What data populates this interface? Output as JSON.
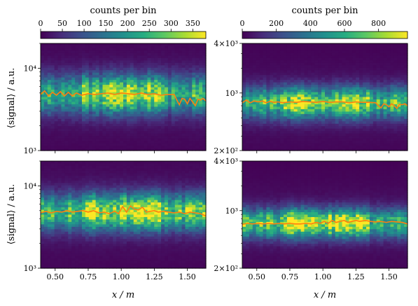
{
  "figure": {
    "colorbar_label": "counts per bin",
    "xlabel": "x / m",
    "ylabel": "⟨signal⟩ / a.u."
  },
  "colorbars": [
    {
      "label": "counts per bin",
      "range": [
        0,
        380
      ],
      "ticks": [
        "0",
        "50",
        "100",
        "150",
        "200",
        "250",
        "300",
        "350"
      ],
      "tick_values": [
        0,
        50,
        100,
        150,
        200,
        250,
        300,
        350
      ],
      "colormap": "viridis"
    },
    {
      "label": "counts per bin",
      "range": [
        0,
        970
      ],
      "ticks": [
        "0",
        "200",
        "400",
        "600",
        "800"
      ],
      "tick_values": [
        0,
        200,
        400,
        600,
        800
      ],
      "colormap": "viridis"
    }
  ],
  "chart_data": [
    {
      "type": "heatmap",
      "panel": "top-left",
      "xlabel": "",
      "ylabel": "⟨signal⟩ / a.u.",
      "xlim": [
        0.39,
        1.64
      ],
      "ylim": [
        1000,
        20000
      ],
      "yscale": "log",
      "xticks": [
        0.5,
        0.75,
        1.0,
        1.25,
        1.5
      ],
      "xtick_labels": [
        "",
        "",
        "",
        "",
        ""
      ],
      "yticks": [
        1000,
        10000
      ],
      "ytick_labels": [
        "10³",
        "10⁴"
      ],
      "colorbar": 0,
      "grid": false,
      "mean_line": {
        "color": "#ff7f0e",
        "x": [
          0.39,
          0.42,
          0.45,
          0.48,
          0.51,
          0.54,
          0.57,
          0.6,
          0.63,
          0.66,
          0.7,
          0.75,
          0.8,
          0.85,
          0.9,
          0.95,
          1.0,
          1.05,
          1.1,
          1.15,
          1.2,
          1.25,
          1.3,
          1.35,
          1.4,
          1.42,
          1.44,
          1.46,
          1.48,
          1.5,
          1.52,
          1.54,
          1.56,
          1.58,
          1.6,
          1.62,
          1.64
        ],
        "y": [
          4800,
          5300,
          4600,
          5100,
          4700,
          5200,
          4600,
          5100,
          4600,
          5000,
          4700,
          4900,
          4800,
          4900,
          5000,
          4800,
          5000,
          4900,
          4800,
          5000,
          4800,
          4900,
          4700,
          4800,
          4800,
          4100,
          3600,
          4300,
          4200,
          3700,
          4300,
          3900,
          3500,
          4200,
          4100,
          4300,
          4000
        ]
      },
      "density": {
        "center": 4800,
        "spread": 0.16,
        "peak": 260,
        "max_x": 1.4
      }
    },
    {
      "type": "heatmap",
      "panel": "top-right",
      "xlabel": "",
      "ylabel": "",
      "xlim": [
        0.39,
        1.64
      ],
      "ylim": [
        200,
        4000
      ],
      "yscale": "log",
      "xticks": [
        0.5,
        0.75,
        1.0,
        1.25,
        1.5
      ],
      "xtick_labels": [
        "",
        "",
        "",
        "",
        ""
      ],
      "yticks": [
        200,
        1000,
        4000
      ],
      "ytick_labels": [
        "2×10²",
        "10³",
        "4×10³"
      ],
      "colorbar": 1,
      "grid": false,
      "mean_line": {
        "color": "#ff7f0e",
        "x": [
          0.39,
          0.42,
          0.45,
          0.48,
          0.51,
          0.54,
          0.57,
          0.6,
          0.63,
          0.66,
          0.7,
          0.75,
          0.8,
          0.85,
          0.9,
          0.95,
          1.0,
          1.05,
          1.1,
          1.15,
          1.2,
          1.25,
          1.3,
          1.35,
          1.4,
          1.42,
          1.44,
          1.46,
          1.48,
          1.5,
          1.52,
          1.54,
          1.56,
          1.58,
          1.6,
          1.62,
          1.64
        ],
        "y": [
          760,
          820,
          760,
          800,
          780,
          800,
          760,
          790,
          770,
          780,
          760,
          780,
          770,
          790,
          780,
          770,
          790,
          770,
          780,
          780,
          760,
          780,
          770,
          770,
          760,
          700,
          660,
          740,
          720,
          680,
          740,
          700,
          650,
          730,
          720,
          740,
          700
        ]
      },
      "density": {
        "center": 760,
        "spread": 0.13,
        "peak": 700,
        "max_x": 1.4
      }
    },
    {
      "type": "heatmap",
      "panel": "bottom-left",
      "xlabel": "x / m",
      "ylabel": "⟨signal⟩ / a.u.",
      "xlim": [
        0.39,
        1.64
      ],
      "ylim": [
        1000,
        20000
      ],
      "yscale": "log",
      "xticks": [
        0.5,
        0.75,
        1.0,
        1.25,
        1.5
      ],
      "xtick_labels": [
        "0.50",
        "0.75",
        "1.00",
        "1.25",
        "1.50"
      ],
      "yticks": [
        1000,
        10000
      ],
      "ytick_labels": [
        "10³",
        "10⁴"
      ],
      "colorbar": 0,
      "grid": false,
      "mean_line": {
        "color": "#ff7f0e",
        "x": [
          0.39,
          0.43,
          0.47,
          0.51,
          0.55,
          0.59,
          0.63,
          0.67,
          0.71,
          0.75,
          0.79,
          0.83,
          0.87,
          0.91,
          0.95,
          0.98,
          1.01,
          1.04,
          1.07,
          1.1,
          1.13,
          1.16,
          1.19,
          1.22,
          1.25,
          1.28,
          1.32,
          1.36,
          1.4,
          1.44,
          1.48,
          1.52,
          1.56,
          1.6,
          1.64
        ],
        "y": [
          4700,
          4900,
          4700,
          4900,
          4800,
          5000,
          4800,
          4900,
          5000,
          4800,
          5000,
          4700,
          4800,
          4600,
          4900,
          4600,
          5600,
          4800,
          5700,
          5200,
          5100,
          5500,
          4800,
          4900,
          5000,
          4800,
          4900,
          4800,
          4700,
          4800,
          4600,
          4800,
          4700,
          4600,
          4300
        ]
      },
      "density": {
        "center": 4800,
        "spread": 0.15,
        "peak": 300,
        "max_x": 1.64
      }
    },
    {
      "type": "heatmap",
      "panel": "bottom-right",
      "xlabel": "x / m",
      "ylabel": "",
      "xlim": [
        0.39,
        1.64
      ],
      "ylim": [
        200,
        4000
      ],
      "yscale": "log",
      "xticks": [
        0.5,
        0.75,
        1.0,
        1.25,
        1.5
      ],
      "xtick_labels": [
        "0.50",
        "0.75",
        "1.00",
        "1.25",
        "1.50"
      ],
      "yticks": [
        200,
        1000,
        4000
      ],
      "ytick_labels": [
        "2×10²",
        "10³",
        "4×10³"
      ],
      "colorbar": 1,
      "grid": false,
      "mean_line": {
        "color": "#ff7f0e",
        "x": [
          0.39,
          0.43,
          0.47,
          0.51,
          0.55,
          0.59,
          0.63,
          0.67,
          0.71,
          0.75,
          0.79,
          0.83,
          0.87,
          0.91,
          0.95,
          0.98,
          1.01,
          1.04,
          1.07,
          1.1,
          1.13,
          1.16,
          1.19,
          1.22,
          1.25,
          1.28,
          1.32,
          1.36,
          1.4,
          1.44,
          1.48,
          1.52,
          1.56,
          1.6,
          1.64
        ],
        "y": [
          680,
          700,
          690,
          700,
          690,
          700,
          690,
          700,
          690,
          700,
          690,
          690,
          700,
          690,
          720,
          700,
          740,
          700,
          760,
          720,
          740,
          760,
          720,
          740,
          760,
          740,
          760,
          740,
          730,
          740,
          720,
          740,
          730,
          720,
          690
        ]
      },
      "density": {
        "center": 700,
        "spread": 0.12,
        "peak": 760,
        "max_x": 1.64
      }
    }
  ]
}
